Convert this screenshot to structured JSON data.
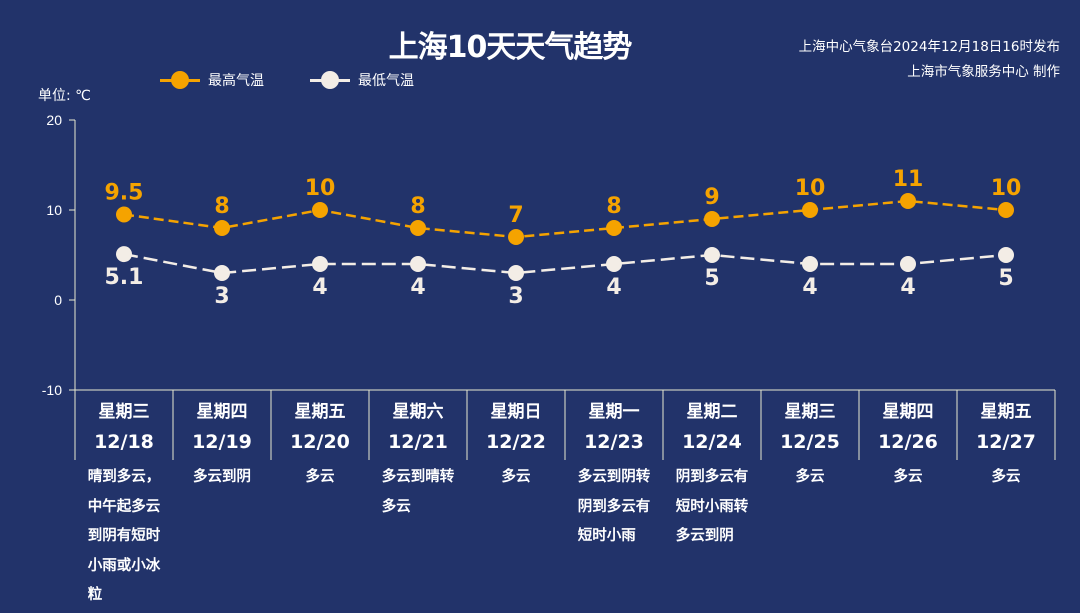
{
  "chart_data": {
    "type": "line",
    "title": "上海10天天气趋势",
    "source_lines": [
      "上海中心气象台2024年12月18日16时发布",
      "上海市气象服务中心 制作"
    ],
    "unit_label": "单位: ℃",
    "ylim": [
      -10,
      20
    ],
    "yticks": [
      "20",
      "10",
      "0",
      "-10"
    ],
    "ytick_values": [
      20,
      10,
      0,
      -10
    ],
    "weekdays": [
      "星期三",
      "星期四",
      "星期五",
      "星期六",
      "星期日",
      "星期一",
      "星期二",
      "星期三",
      "星期四",
      "星期五"
    ],
    "categories": [
      "12/18",
      "12/19",
      "12/20",
      "12/21",
      "12/22",
      "12/23",
      "12/24",
      "12/25",
      "12/26",
      "12/27"
    ],
    "descriptions": [
      "晴到多云，\n中午起多云\n到阴有短时\n小雨或小冰\n粒",
      "多云到阴",
      "多云",
      "多云到晴转\n多云",
      "多云",
      "多云到阴转\n阴到多云有\n短时小雨",
      "阴到多云有\n短时小雨转\n多云到阴",
      "多云",
      "多云",
      "多云"
    ],
    "series": [
      {
        "name": "最高气温",
        "color": "#f5a300",
        "values": [
          9.5,
          8,
          10,
          8,
          7,
          8,
          9,
          10,
          11,
          10
        ],
        "labels": [
          "9.5",
          "8",
          "10",
          "8",
          "7",
          "8",
          "9",
          "10",
          "11",
          "10"
        ]
      },
      {
        "name": "最低气温",
        "color": "#f3ede6",
        "values": [
          5.1,
          3,
          4,
          4,
          3,
          4,
          5,
          4,
          4,
          5
        ],
        "labels": [
          "5.1",
          "3",
          "4",
          "4",
          "3",
          "4",
          "5",
          "4",
          "4",
          "5"
        ]
      }
    ],
    "legend_position": "top-left"
  }
}
